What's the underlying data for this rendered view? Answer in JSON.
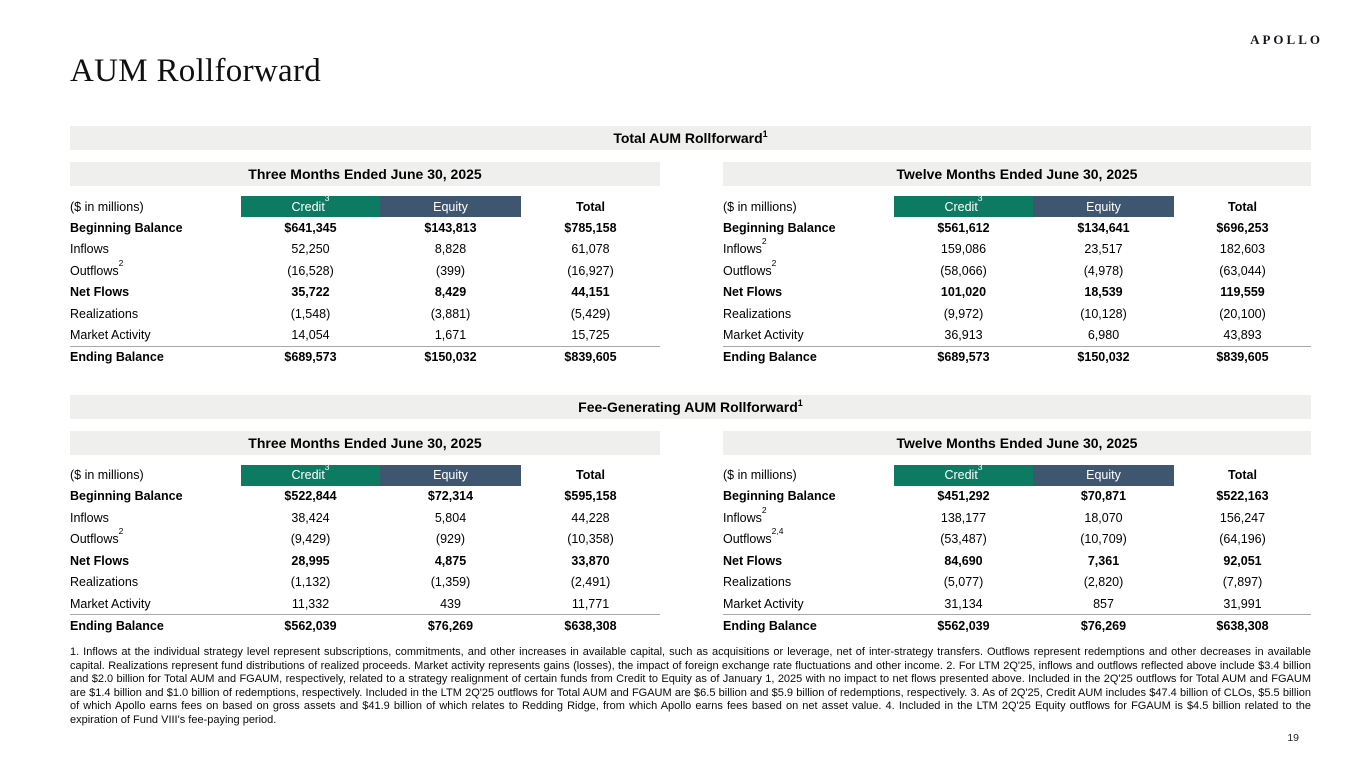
{
  "brand": "APOLLO",
  "page_title": "AUM Rollforward",
  "page_number": "19",
  "colors": {
    "credit_green": "#0c7b62",
    "equity_blue": "#3e566f",
    "band_gray": "#efefee"
  },
  "total_section": {
    "title": "Total AUM Rollforward",
    "title_sup": "1",
    "three_month": {
      "period": "Three Months Ended June 30, 2025",
      "unit_label": "($ in millions)",
      "columns": {
        "credit": "Credit",
        "credit_sup": "3",
        "equity": "Equity",
        "total": "Total"
      },
      "rows": [
        {
          "label": "Beginning Balance",
          "sup": "",
          "credit": "$641,345",
          "equity": "$143,813",
          "total": "$785,158",
          "bold": true
        },
        {
          "label": "Inflows",
          "sup": "",
          "credit": "52,250",
          "equity": "8,828",
          "total": "61,078"
        },
        {
          "label": "Outflows",
          "sup": "2",
          "credit": "(16,528)",
          "equity": "(399)",
          "total": "(16,927)"
        },
        {
          "label": "Net Flows",
          "sup": "",
          "credit": "35,722",
          "equity": "8,429",
          "total": "44,151",
          "bold": true
        },
        {
          "label": "Realizations",
          "sup": "",
          "credit": "(1,548)",
          "equity": "(3,881)",
          "total": "(5,429)"
        },
        {
          "label": "Market Activity",
          "sup": "",
          "credit": "14,054",
          "equity": "1,671",
          "total": "15,725"
        },
        {
          "label": "Ending Balance",
          "sup": "",
          "credit": "$689,573",
          "equity": "$150,032",
          "total": "$839,605",
          "bold": true,
          "topline": true
        }
      ]
    },
    "twelve_month": {
      "period": "Twelve Months Ended June 30, 2025",
      "unit_label": "($ in millions)",
      "columns": {
        "credit": "Credit",
        "credit_sup": "3",
        "equity": "Equity",
        "total": "Total"
      },
      "rows": [
        {
          "label": "Beginning Balance",
          "sup": "",
          "credit": "$561,612",
          "equity": "$134,641",
          "total": "$696,253",
          "bold": true
        },
        {
          "label": "Inflows",
          "sup": "2",
          "credit": "159,086",
          "equity": "23,517",
          "total": "182,603"
        },
        {
          "label": "Outflows",
          "sup": "2",
          "credit": "(58,066)",
          "equity": "(4,978)",
          "total": "(63,044)"
        },
        {
          "label": "Net Flows",
          "sup": "",
          "credit": "101,020",
          "equity": "18,539",
          "total": "119,559",
          "bold": true
        },
        {
          "label": "Realizations",
          "sup": "",
          "credit": "(9,972)",
          "equity": "(10,128)",
          "total": "(20,100)"
        },
        {
          "label": "Market Activity",
          "sup": "",
          "credit": "36,913",
          "equity": "6,980",
          "total": "43,893"
        },
        {
          "label": "Ending Balance",
          "sup": "",
          "credit": "$689,573",
          "equity": "$150,032",
          "total": "$839,605",
          "bold": true,
          "topline": true
        }
      ]
    }
  },
  "fg_section": {
    "title": "Fee-Generating AUM Rollforward",
    "title_sup": "1",
    "three_month": {
      "period": "Three Months Ended June 30, 2025",
      "unit_label": "($ in millions)",
      "columns": {
        "credit": "Credit",
        "credit_sup": "3",
        "equity": "Equity",
        "total": "Total"
      },
      "rows": [
        {
          "label": "Beginning Balance",
          "sup": "",
          "credit": "$522,844",
          "equity": "$72,314",
          "total": "$595,158",
          "bold": true
        },
        {
          "label": "Inflows",
          "sup": "",
          "credit": "38,424",
          "equity": "5,804",
          "total": "44,228"
        },
        {
          "label": "Outflows",
          "sup": "2",
          "credit": "(9,429)",
          "equity": "(929)",
          "total": "(10,358)"
        },
        {
          "label": "Net Flows",
          "sup": "",
          "credit": "28,995",
          "equity": "4,875",
          "total": "33,870",
          "bold": true
        },
        {
          "label": "Realizations",
          "sup": "",
          "credit": "(1,132)",
          "equity": "(1,359)",
          "total": "(2,491)"
        },
        {
          "label": "Market Activity",
          "sup": "",
          "credit": "11,332",
          "equity": "439",
          "total": "11,771"
        },
        {
          "label": "Ending Balance",
          "sup": "",
          "credit": "$562,039",
          "equity": "$76,269",
          "total": "$638,308",
          "bold": true,
          "topline": true
        }
      ]
    },
    "twelve_month": {
      "period": "Twelve Months Ended June 30, 2025",
      "unit_label": "($ in millions)",
      "columns": {
        "credit": "Credit",
        "credit_sup": "3",
        "equity": "Equity",
        "total": "Total"
      },
      "rows": [
        {
          "label": "Beginning Balance",
          "sup": "",
          "credit": "$451,292",
          "equity": "$70,871",
          "total": "$522,163",
          "bold": true
        },
        {
          "label": "Inflows",
          "sup": "2",
          "credit": "138,177",
          "equity": "18,070",
          "total": "156,247"
        },
        {
          "label": "Outflows",
          "sup": "2,4",
          "credit": "(53,487)",
          "equity": "(10,709)",
          "total": "(64,196)"
        },
        {
          "label": "Net Flows",
          "sup": "",
          "credit": "84,690",
          "equity": "7,361",
          "total": "92,051",
          "bold": true
        },
        {
          "label": "Realizations",
          "sup": "",
          "credit": "(5,077)",
          "equity": "(2,820)",
          "total": "(7,897)"
        },
        {
          "label": "Market Activity",
          "sup": "",
          "credit": "31,134",
          "equity": "857",
          "total": "31,991"
        },
        {
          "label": "Ending Balance",
          "sup": "",
          "credit": "$562,039",
          "equity": "$76,269",
          "total": "$638,308",
          "bold": true,
          "topline": true
        }
      ]
    }
  },
  "footnotes": "1. Inflows at the individual strategy level represent subscriptions, commitments, and other increases in available capital, such as acquisitions or leverage, net of inter-strategy transfers. Outflows represent redemptions and other decreases in available capital. Realizations represent fund distributions of realized proceeds. Market activity represents gains (losses), the impact of foreign exchange rate fluctuations and other income. 2. For LTM 2Q'25, inflows and outflows reflected above include $3.4 billion and $2.0 billion for Total AUM and FGAUM, respectively, related to a strategy realignment of certain funds from Credit to Equity as of January 1, 2025 with no impact to net flows presented above. Included in the 2Q'25 outflows for Total AUM and FGAUM are $1.4 billion and $1.0 billion of redemptions, respectively. Included in the LTM 2Q'25 outflows for Total AUM and FGAUM are $6.5 billion and $5.9 billion of redemptions, respectively. 3. As of 2Q'25, Credit AUM includes $47.4 billion of CLOs, $5.5 billion of which Apollo earns fees on based on gross assets and $41.9 billion of which relates to Redding Ridge, from which Apollo earns fees based on net asset value. 4. Included in the LTM 2Q'25 Equity outflows for FGAUM is $4.5 billion related to the expiration of Fund VIII's fee-paying period."
}
